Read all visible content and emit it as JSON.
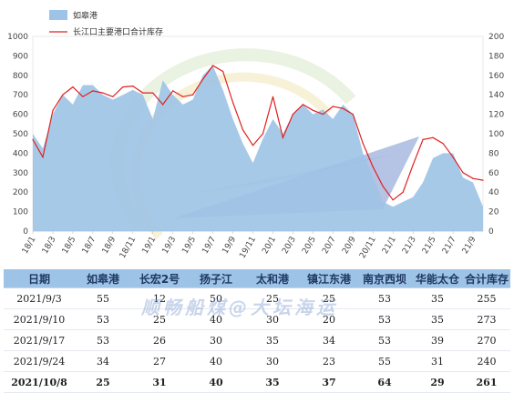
{
  "chart_data": {
    "type": "area+line",
    "title": "",
    "legend": [
      "如皋港",
      "长江口主要港口合计库存"
    ],
    "legend_position": "top-left",
    "y_left_range": [
      0,
      1000
    ],
    "y_left_ticks": [
      "0",
      "100",
      "200",
      "300",
      "400",
      "500",
      "600",
      "700",
      "800",
      "900",
      "1000"
    ],
    "y_right_range": [
      0,
      200
    ],
    "y_right_ticks": [
      "0",
      "20",
      "40",
      "60",
      "80",
      "100",
      "120",
      "140",
      "160",
      "180",
      "200"
    ],
    "x_range": [
      "18/1",
      "21/10"
    ],
    "x_ticks": [
      "18/1",
      "18/3",
      "18/5",
      "18/7",
      "18/9",
      "18/11",
      "19/1",
      "19/3",
      "19/5",
      "19/7",
      "19/9",
      "19/11",
      "20/1",
      "20/3",
      "20/5",
      "20/7",
      "20/9",
      "20/11",
      "21/1",
      "21/3",
      "21/5",
      "21/7",
      "21/9"
    ],
    "series": [
      {
        "name": "如皋港",
        "type": "area",
        "axis": "right",
        "color": "#9dc3e6",
        "x": [
          "18/1",
          "18/2",
          "18/3",
          "18/4",
          "18/5",
          "18/6",
          "18/7",
          "18/8",
          "18/9",
          "18/10",
          "18/11",
          "18/12",
          "19/1",
          "19/2",
          "19/3",
          "19/4",
          "19/5",
          "19/6",
          "19/7",
          "19/8",
          "19/9",
          "19/10",
          "19/11",
          "19/12",
          "20/1",
          "20/2",
          "20/3",
          "20/4",
          "20/5",
          "20/6",
          "20/7",
          "20/8",
          "20/9",
          "20/10",
          "20/11",
          "20/12",
          "21/1",
          "21/2",
          "21/3",
          "21/4",
          "21/5",
          "21/6",
          "21/7",
          "21/8",
          "21/9",
          "21/10"
        ],
        "values": [
          100,
          85,
          120,
          140,
          130,
          150,
          150,
          140,
          135,
          140,
          145,
          140,
          115,
          155,
          140,
          130,
          135,
          160,
          170,
          145,
          115,
          90,
          70,
          95,
          115,
          100,
          120,
          130,
          120,
          125,
          115,
          130,
          120,
          80,
          55,
          30,
          25,
          30,
          35,
          50,
          75,
          80,
          80,
          55,
          50,
          25
        ]
      },
      {
        "name": "长江口主要港口合计库存",
        "type": "line",
        "axis": "left",
        "color": "#e02020",
        "x": [
          "18/1",
          "18/2",
          "18/3",
          "18/4",
          "18/5",
          "18/6",
          "18/7",
          "18/8",
          "18/9",
          "18/10",
          "18/11",
          "18/12",
          "19/1",
          "19/2",
          "19/3",
          "19/4",
          "19/5",
          "19/6",
          "19/7",
          "19/8",
          "19/9",
          "19/10",
          "19/11",
          "19/12",
          "20/1",
          "20/2",
          "20/3",
          "20/4",
          "20/5",
          "20/6",
          "20/7",
          "20/8",
          "20/9",
          "20/10",
          "20/11",
          "20/12",
          "21/1",
          "21/2",
          "21/3",
          "21/4",
          "21/5",
          "21/6",
          "21/7",
          "21/8",
          "21/9",
          "21/10"
        ],
        "values": [
          470,
          380,
          620,
          700,
          740,
          690,
          720,
          710,
          690,
          740,
          745,
          710,
          710,
          650,
          720,
          690,
          700,
          780,
          850,
          820,
          660,
          520,
          440,
          500,
          690,
          480,
          600,
          650,
          620,
          600,
          640,
          630,
          600,
          450,
          330,
          230,
          160,
          200,
          340,
          470,
          480,
          450,
          380,
          300,
          270,
          261
        ]
      }
    ]
  },
  "table": {
    "headers": [
      "日期",
      "如皋港",
      "长宏2号",
      "扬子江",
      "太和港",
      "镇江东港",
      "南京西坝",
      "华能太仓",
      "合计库存"
    ],
    "rows": [
      [
        "2021/9/3",
        "55",
        "12",
        "50",
        "25",
        "25",
        "53",
        "35",
        "255"
      ],
      [
        "2021/9/10",
        "53",
        "25",
        "40",
        "30",
        "20",
        "53",
        "35",
        "273"
      ],
      [
        "2021/9/17",
        "53",
        "26",
        "30",
        "35",
        "34",
        "53",
        "39",
        "270"
      ],
      [
        "2021/9/24",
        "34",
        "27",
        "40",
        "30",
        "23",
        "55",
        "31",
        "240"
      ],
      [
        "2021/10/8",
        "25",
        "31",
        "40",
        "35",
        "37",
        "64",
        "29",
        "261"
      ]
    ]
  },
  "watermark": "顺畅船煤@大坛海运",
  "colors": {
    "area": "#9dc3e6",
    "line": "#e02020",
    "header_bg": "#9dc3e6",
    "header_text": "#1f3864"
  }
}
